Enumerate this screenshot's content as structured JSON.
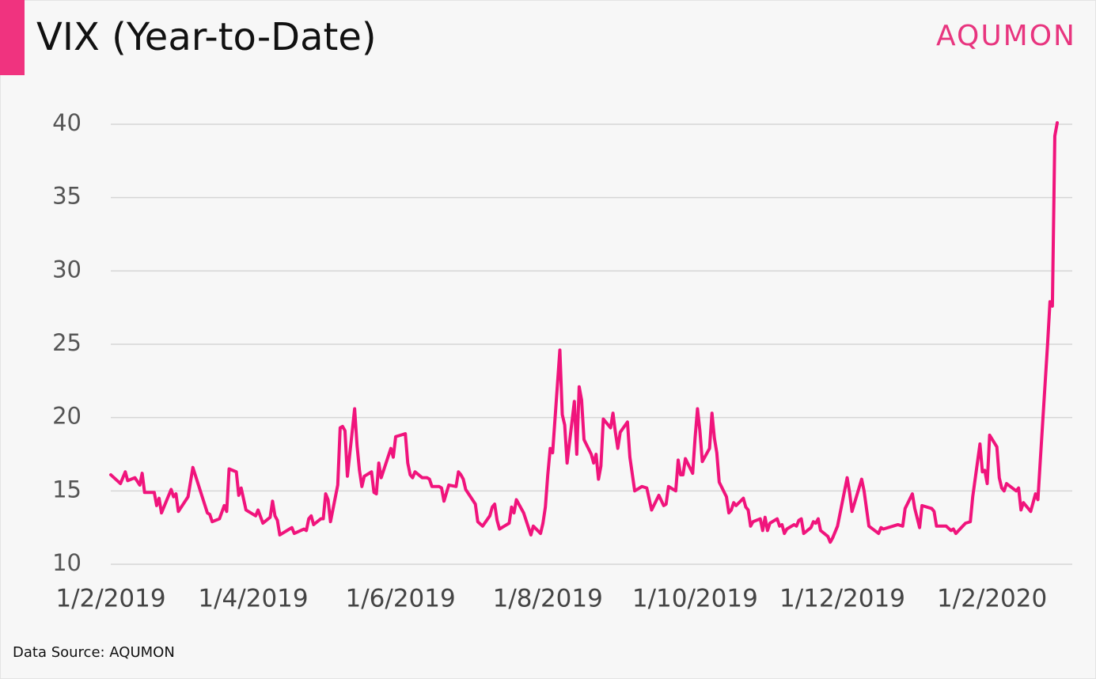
{
  "chart_data": {
    "type": "line",
    "title": "VIX (Year-to-Date)",
    "brand": "AQUMON",
    "source": "Data Source:  AQUMON",
    "color": "#f0147c",
    "grid": true,
    "ylim": [
      10,
      40
    ],
    "yticks": [
      10,
      15,
      20,
      25,
      30,
      35,
      40
    ],
    "xticks": [
      "1/2/2019",
      "1/4/2019",
      "1/6/2019",
      "1/8/2019",
      "1/10/2019",
      "1/12/2019",
      "1/2/2020"
    ],
    "x": [
      "1/2/2019",
      "5/2/2019",
      "7/2/2019",
      "8/2/2019",
      "11/2/2019",
      "13/2/2019",
      "14/2/2019",
      "15/2/2019",
      "19/2/2019",
      "20/2/2019",
      "21/2/2019",
      "22/2/2019",
      "26/2/2019",
      "27/2/2019",
      "28/2/2019",
      "1/3/2019",
      "5/3/2019",
      "7/3/2019",
      "13/3/2019",
      "14/3/2019",
      "15/3/2019",
      "18/3/2019",
      "20/3/2019",
      "21/3/2019",
      "22/3/2019",
      "25/3/2019",
      "26/3/2019",
      "27/3/2019",
      "29/3/2019",
      "2/4/2019",
      "3/4/2019",
      "5/4/2019",
      "8/4/2019",
      "9/4/2019",
      "10/4/2019",
      "11/4/2019",
      "12/4/2019",
      "16/4/2019",
      "17/4/2019",
      "18/4/2019",
      "22/4/2019",
      "23/4/2019",
      "24/4/2019",
      "25/4/2019",
      "26/4/2019",
      "29/4/2019",
      "30/4/2019",
      "1/5/2019",
      "2/5/2019",
      "3/5/2019",
      "6/5/2019",
      "7/5/2019",
      "8/5/2019",
      "9/5/2019",
      "10/5/2019",
      "13/5/2019",
      "14/5/2019",
      "15/5/2019",
      "16/5/2019",
      "17/5/2019",
      "20/5/2019",
      "21/5/2019",
      "22/5/2019",
      "23/5/2019",
      "24/5/2019",
      "28/5/2019",
      "29/5/2019",
      "30/5/2019",
      "3/6/2019",
      "4/6/2019",
      "5/6/2019",
      "6/6/2019",
      "7/6/2019",
      "10/6/2019",
      "12/6/2019",
      "13/6/2019",
      "14/6/2019",
      "17/6/2019",
      "18/6/2019",
      "19/6/2019",
      "21/6/2019",
      "24/6/2019",
      "25/6/2019",
      "26/6/2019",
      "27/6/2019",
      "28/6/2019",
      "2/7/2019",
      "3/7/2019",
      "5/7/2019",
      "8/7/2019",
      "9/7/2019",
      "10/7/2019",
      "11/7/2019",
      "12/7/2019",
      "16/7/2019",
      "17/7/2019",
      "18/7/2019",
      "19/7/2019",
      "22/7/2019",
      "25/7/2019",
      "26/7/2019",
      "29/7/2019",
      "30/7/2019",
      "31/7/2019",
      "1/8/2019",
      "2/8/2019",
      "3/8/2019",
      "6/8/2019",
      "7/8/2019",
      "8/8/2019",
      "9/8/2019",
      "12/8/2019",
      "13/8/2019",
      "14/8/2019",
      "15/8/2019",
      "16/8/2019",
      "19/8/2019",
      "20/8/2019",
      "21/8/2019",
      "22/8/2019",
      "23/8/2019",
      "24/8/2019",
      "27/8/2019",
      "28/8/2019",
      "29/8/2019",
      "30/8/2019",
      "31/8/2019",
      "3/9/2019",
      "4/9/2019",
      "6/9/2019",
      "9/9/2019",
      "11/9/2019",
      "13/9/2019",
      "16/9/2019",
      "18/9/2019",
      "19/9/2019",
      "20/9/2019",
      "23/9/2019",
      "24/9/2019",
      "25/9/2019",
      "26/9/2019",
      "27/9/2019",
      "30/9/2019",
      "1/10/2019",
      "2/10/2019",
      "3/10/2019",
      "4/10/2019",
      "7/10/2019",
      "8/10/2019",
      "9/10/2019",
      "10/10/2019",
      "11/10/2019",
      "14/10/2019",
      "15/10/2019",
      "16/10/2019",
      "17/10/2019",
      "18/10/2019",
      "21/10/2019",
      "22/10/2019",
      "23/10/2019",
      "24/10/2019",
      "25/10/2019",
      "28/10/2019",
      "29/10/2019",
      "30/10/2019",
      "31/10/2019",
      "1/11/2019",
      "4/11/2019",
      "5/11/2019",
      "6/11/2019",
      "7/11/2019",
      "8/11/2019",
      "11/11/2019",
      "12/11/2019",
      "13/11/2019",
      "14/11/2019",
      "15/11/2019",
      "18/11/2019",
      "19/11/2019",
      "20/11/2019",
      "21/11/2019",
      "22/11/2019",
      "25/11/2019",
      "26/11/2019",
      "27/11/2019",
      "29/11/2019",
      "3/12/2019",
      "4/12/2019",
      "5/12/2019",
      "9/12/2019",
      "10/12/2019",
      "12/12/2019",
      "16/12/2019",
      "17/12/2019",
      "18/12/2019",
      "24/12/2019",
      "26/12/2019",
      "27/12/2019",
      "30/12/2019",
      "31/12/2019",
      "2/1/2020",
      "3/1/2020",
      "7/1/2020",
      "8/1/2020",
      "9/1/2020",
      "13/1/2020",
      "15/1/2020",
      "16/1/2020",
      "17/1/2020",
      "21/1/2020",
      "23/1/2020",
      "24/1/2020",
      "27/1/2020",
      "28/1/2020",
      "29/1/2020",
      "30/1/2020",
      "31/1/2020",
      "3/2/2020",
      "4/2/2020",
      "5/2/2020",
      "6/2/2020",
      "7/2/2020",
      "11/2/2020",
      "12/2/2020",
      "13/2/2020",
      "14/2/2020",
      "17/2/2020",
      "19/2/2020",
      "20/2/2020",
      "21/2/2020",
      "24/2/2020",
      "25/2/2020",
      "26/2/2020",
      "27/2/2020",
      "28/2/2020"
    ],
    "values": [
      16.1,
      15.5,
      16.3,
      15.7,
      15.9,
      15.4,
      16.2,
      14.9,
      14.9,
      14.0,
      14.5,
      13.5,
      15.1,
      14.6,
      14.8,
      13.6,
      14.6,
      16.6,
      13.5,
      13.4,
      12.9,
      13.1,
      14.0,
      13.6,
      16.5,
      16.3,
      14.7,
      15.2,
      13.7,
      13.3,
      13.7,
      12.8,
      13.2,
      14.3,
      13.3,
      13.0,
      12.0,
      12.4,
      12.5,
      12.1,
      12.4,
      12.3,
      13.1,
      13.3,
      12.7,
      13.1,
      13.1,
      14.8,
      14.4,
      12.9,
      15.4,
      19.3,
      19.4,
      19.1,
      16.0,
      20.6,
      18.1,
      16.4,
      15.3,
      16.0,
      16.3,
      14.9,
      14.8,
      16.9,
      15.9,
      17.9,
      17.3,
      18.7,
      18.9,
      16.9,
      16.1,
      15.9,
      16.3,
      15.9,
      15.9,
      15.8,
      15.3,
      15.3,
      15.2,
      14.3,
      15.4,
      15.3,
      16.3,
      16.1,
      15.8,
      15.1,
      14.1,
      12.9,
      12.6,
      13.3,
      13.9,
      14.1,
      13.0,
      12.4,
      12.8,
      13.9,
      13.5,
      14.4,
      13.5,
      12.0,
      12.6,
      12.1,
      12.8,
      13.9,
      16.1,
      17.9,
      17.6,
      24.6,
      20.2,
      19.5,
      16.9,
      21.1,
      17.5,
      22.1,
      21.2,
      18.5,
      17.5,
      16.9,
      17.5,
      15.8,
      16.7,
      19.9,
      19.3,
      20.3,
      19.0,
      17.9,
      19.0,
      19.7,
      17.3,
      15.0,
      15.3,
      15.2,
      13.7,
      14.7,
      14.0,
      14.1,
      15.3,
      15.0,
      17.1,
      16.1,
      16.1,
      17.2,
      16.2,
      18.6,
      20.6,
      19.1,
      17.0,
      17.9,
      20.3,
      18.6,
      17.6,
      15.6,
      14.6,
      13.5,
      13.7,
      14.2,
      14.0,
      14.5,
      13.9,
      13.7,
      12.6,
      12.9,
      13.1,
      12.3,
      13.2,
      12.3,
      12.8,
      13.1,
      12.6,
      12.7,
      12.1,
      12.4,
      12.7,
      12.6,
      13.0,
      13.1,
      12.1,
      12.5,
      12.9,
      12.8,
      13.1,
      12.3,
      11.9,
      11.5,
      11.8,
      12.6,
      15.9,
      14.9,
      13.6,
      15.8,
      15.0,
      12.6,
      12.1,
      12.5,
      12.4,
      12.7,
      12.6,
      13.8,
      14.8,
      13.8,
      12.5,
      14.0,
      13.8,
      13.6,
      12.6,
      12.6,
      12.3,
      12.4,
      12.1,
      12.8,
      12.9,
      14.6,
      18.2,
      16.3,
      16.4,
      15.5,
      18.8,
      18.0,
      15.9,
      15.2,
      15.0,
      15.5,
      15.0,
      15.2,
      13.7,
      14.2,
      13.6,
      14.8,
      14.4,
      17.1,
      25.0,
      27.9,
      27.6,
      39.2,
      40.1
    ]
  }
}
